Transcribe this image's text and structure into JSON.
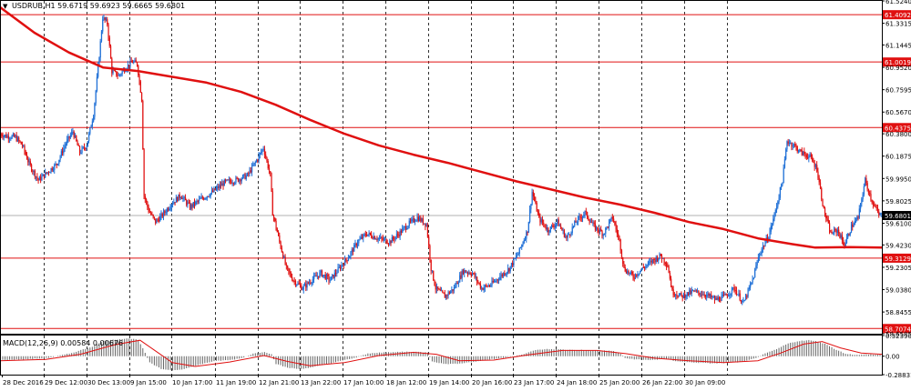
{
  "header": {
    "symbol_label": "USDRUB,H1",
    "ohlc": [
      "59.6719",
      "59.6923",
      "59.6665",
      "59.6801"
    ]
  },
  "indicator": {
    "label": "MACD(12,26,9) 0.00584 0.00676"
  },
  "colors": {
    "bull": "#1e6fd6",
    "bear": "#e01010",
    "ma": "#e01010",
    "level_line": "#e01010",
    "grid": "#000000",
    "current_price": "#b0b0b0",
    "macd_hist": "#666666",
    "macd_signal": "#e01010"
  },
  "chart_data": {
    "type": "candlestick",
    "price_axis": {
      "range": [
        58.6585,
        61.524
      ],
      "ticks": [
        "61.5240",
        "61.3315",
        "61.1445",
        "60.9520",
        "60.7595",
        "60.5670",
        "60.3800",
        "60.1875",
        "59.9950",
        "59.8025",
        "59.6100",
        "59.4230",
        "59.2305",
        "59.0380",
        "58.8455",
        "58.6585"
      ]
    },
    "horizontal_levels": [
      "61.4092",
      "61.0019",
      "60.4375",
      "59.3129",
      "58.7074"
    ],
    "current_price": "59.6801",
    "x_axis_labels": [
      "28 Dec 2016",
      "29 Dec 12:00",
      "30 Dec 13:00",
      "9 Jan 15:00",
      "10 Jan 17:00",
      "11 Jan 19:00",
      "12 Jan 21:00",
      "13 Jan 22:00",
      "17 Jan 10:00",
      "18 Jan 12:00",
      "19 Jan 14:00",
      "20 Jan 16:00",
      "23 Jan 17:00",
      "24 Jan 18:00",
      "25 Jan 20:00",
      "26 Jan 22:00",
      "30 Jan 09:00"
    ],
    "price_path": [
      [
        0,
        60.38
      ],
      [
        6,
        60.36
      ],
      [
        14,
        60.35
      ],
      [
        20,
        60.28
      ],
      [
        26,
        60.12
      ],
      [
        34,
        59.98
      ],
      [
        42,
        60.05
      ],
      [
        50,
        60.12
      ],
      [
        58,
        60.3
      ],
      [
        64,
        60.4
      ],
      [
        70,
        60.22
      ],
      [
        76,
        60.28
      ],
      [
        82,
        60.55
      ],
      [
        86,
        60.95
      ],
      [
        90,
        61.38
      ],
      [
        94,
        61.33
      ],
      [
        98,
        60.92
      ],
      [
        104,
        60.88
      ],
      [
        110,
        60.95
      ],
      [
        116,
        61.0
      ],
      [
        120,
        60.98
      ],
      [
        124,
        60.68
      ],
      [
        126,
        59.85
      ],
      [
        130,
        59.72
      ],
      [
        136,
        59.62
      ],
      [
        142,
        59.68
      ],
      [
        150,
        59.78
      ],
      [
        158,
        59.85
      ],
      [
        166,
        59.75
      ],
      [
        176,
        59.82
      ],
      [
        186,
        59.88
      ],
      [
        196,
        59.96
      ],
      [
        206,
        59.98
      ],
      [
        216,
        60.02
      ],
      [
        224,
        60.15
      ],
      [
        230,
        60.26
      ],
      [
        236,
        60.02
      ],
      [
        238,
        59.7
      ],
      [
        244,
        59.45
      ],
      [
        250,
        59.22
      ],
      [
        256,
        59.12
      ],
      [
        264,
        59.05
      ],
      [
        272,
        59.12
      ],
      [
        280,
        59.18
      ],
      [
        288,
        59.12
      ],
      [
        296,
        59.22
      ],
      [
        304,
        59.32
      ],
      [
        312,
        59.45
      ],
      [
        320,
        59.52
      ],
      [
        330,
        59.48
      ],
      [
        340,
        59.45
      ],
      [
        348,
        59.52
      ],
      [
        356,
        59.6
      ],
      [
        364,
        59.66
      ],
      [
        372,
        59.6
      ],
      [
        376,
        59.22
      ],
      [
        380,
        59.05
      ],
      [
        388,
        58.98
      ],
      [
        396,
        59.05
      ],
      [
        404,
        59.2
      ],
      [
        412,
        59.18
      ],
      [
        420,
        59.05
      ],
      [
        428,
        59.08
      ],
      [
        436,
        59.15
      ],
      [
        444,
        59.22
      ],
      [
        452,
        59.35
      ],
      [
        460,
        59.55
      ],
      [
        464,
        59.88
      ],
      [
        470,
        59.65
      ],
      [
        478,
        59.55
      ],
      [
        486,
        59.62
      ],
      [
        494,
        59.48
      ],
      [
        502,
        59.62
      ],
      [
        510,
        59.7
      ],
      [
        518,
        59.58
      ],
      [
        526,
        59.52
      ],
      [
        534,
        59.66
      ],
      [
        540,
        59.46
      ],
      [
        544,
        59.22
      ],
      [
        552,
        59.15
      ],
      [
        560,
        59.22
      ],
      [
        568,
        59.28
      ],
      [
        576,
        59.33
      ],
      [
        582,
        59.25
      ],
      [
        586,
        59.02
      ],
      [
        594,
        58.98
      ],
      [
        604,
        59.02
      ],
      [
        614,
        59.0
      ],
      [
        624,
        58.95
      ],
      [
        632,
        58.98
      ],
      [
        640,
        59.05
      ],
      [
        648,
        58.92
      ],
      [
        656,
        59.12
      ],
      [
        662,
        59.35
      ],
      [
        670,
        59.5
      ],
      [
        676,
        59.72
      ],
      [
        682,
        59.98
      ],
      [
        686,
        60.32
      ],
      [
        692,
        60.28
      ],
      [
        698,
        60.22
      ],
      [
        706,
        60.18
      ],
      [
        712,
        60.08
      ],
      [
        718,
        59.72
      ],
      [
        724,
        59.52
      ],
      [
        730,
        59.55
      ],
      [
        736,
        59.42
      ],
      [
        742,
        59.58
      ],
      [
        748,
        59.66
      ],
      [
        754,
        59.98
      ],
      [
        760,
        59.8
      ],
      [
        766,
        59.68
      ]
    ],
    "moving_average": [
      [
        0,
        61.47
      ],
      [
        30,
        61.25
      ],
      [
        60,
        61.08
      ],
      [
        90,
        60.95
      ],
      [
        120,
        60.92
      ],
      [
        150,
        60.87
      ],
      [
        180,
        60.82
      ],
      [
        210,
        60.74
      ],
      [
        240,
        60.63
      ],
      [
        270,
        60.5
      ],
      [
        300,
        60.38
      ],
      [
        330,
        60.28
      ],
      [
        360,
        60.2
      ],
      [
        390,
        60.13
      ],
      [
        420,
        60.05
      ],
      [
        450,
        59.97
      ],
      [
        480,
        59.9
      ],
      [
        510,
        59.83
      ],
      [
        540,
        59.77
      ],
      [
        570,
        59.7
      ],
      [
        600,
        59.62
      ],
      [
        630,
        59.56
      ],
      [
        660,
        59.48
      ],
      [
        690,
        59.43
      ],
      [
        710,
        59.4
      ],
      [
        740,
        59.405
      ],
      [
        768,
        59.4
      ]
    ],
    "macd": {
      "range": [
        -0.28831,
        0.3239
      ],
      "ticks": [
        "0.32390",
        "0.00",
        "-0.28831"
      ],
      "histogram": [
        [
          0,
          -0.06
        ],
        [
          20,
          -0.05
        ],
        [
          40,
          -0.03
        ],
        [
          60,
          0.04
        ],
        [
          80,
          0.15
        ],
        [
          90,
          0.24
        ],
        [
          100,
          0.26
        ],
        [
          110,
          0.28
        ],
        [
          120,
          0.26
        ],
        [
          126,
          0.05
        ],
        [
          130,
          -0.1
        ],
        [
          140,
          -0.2
        ],
        [
          150,
          -0.22
        ],
        [
          160,
          -0.2
        ],
        [
          170,
          -0.15
        ],
        [
          180,
          -0.1
        ],
        [
          190,
          -0.07
        ],
        [
          200,
          -0.06
        ],
        [
          210,
          -0.03
        ],
        [
          220,
          0.04
        ],
        [
          230,
          0.07
        ],
        [
          236,
          0.03
        ],
        [
          240,
          -0.12
        ],
        [
          250,
          -0.18
        ],
        [
          260,
          -0.2
        ],
        [
          270,
          -0.18
        ],
        [
          280,
          -0.14
        ],
        [
          290,
          -0.1
        ],
        [
          300,
          -0.06
        ],
        [
          310,
          -0.02
        ],
        [
          320,
          0.04
        ],
        [
          330,
          0.06
        ],
        [
          340,
          0.06
        ],
        [
          350,
          0.07
        ],
        [
          360,
          0.07
        ],
        [
          372,
          0.06
        ],
        [
          376,
          -0.08
        ],
        [
          386,
          -0.12
        ],
        [
          396,
          -0.12
        ],
        [
          406,
          -0.1
        ],
        [
          416,
          -0.08
        ],
        [
          426,
          -0.05
        ],
        [
          436,
          -0.03
        ],
        [
          446,
          0.0
        ],
        [
          456,
          0.03
        ],
        [
          464,
          0.09
        ],
        [
          474,
          0.11
        ],
        [
          484,
          0.11
        ],
        [
          494,
          0.1
        ],
        [
          504,
          0.1
        ],
        [
          514,
          0.09
        ],
        [
          524,
          0.09
        ],
        [
          534,
          0.08
        ],
        [
          540,
          0.04
        ],
        [
          544,
          -0.03
        ],
        [
          554,
          -0.05
        ],
        [
          564,
          -0.06
        ],
        [
          574,
          -0.05
        ],
        [
          582,
          -0.04
        ],
        [
          586,
          -0.07
        ],
        [
          596,
          -0.09
        ],
        [
          606,
          -0.1
        ],
        [
          616,
          -0.11
        ],
        [
          626,
          -0.11
        ],
        [
          636,
          -0.1
        ],
        [
          646,
          -0.09
        ],
        [
          656,
          -0.04
        ],
        [
          666,
          0.04
        ],
        [
          676,
          0.11
        ],
        [
          686,
          0.2
        ],
        [
          696,
          0.24
        ],
        [
          704,
          0.25
        ],
        [
          712,
          0.23
        ],
        [
          720,
          0.18
        ],
        [
          728,
          0.1
        ],
        [
          736,
          0.04
        ],
        [
          746,
          0.02
        ],
        [
          756,
          0.03
        ],
        [
          766,
          0.02
        ]
      ],
      "signal": [
        [
          0,
          -0.07
        ],
        [
          40,
          -0.05
        ],
        [
          70,
          0.03
        ],
        [
          100,
          0.18
        ],
        [
          122,
          0.25
        ],
        [
          134,
          0.1
        ],
        [
          150,
          -0.1
        ],
        [
          170,
          -0.16
        ],
        [
          200,
          -0.09
        ],
        [
          230,
          0.01
        ],
        [
          250,
          -0.08
        ],
        [
          270,
          -0.15
        ],
        [
          300,
          -0.1
        ],
        [
          330,
          0.01
        ],
        [
          360,
          0.06
        ],
        [
          380,
          0.03
        ],
        [
          400,
          -0.07
        ],
        [
          430,
          -0.06
        ],
        [
          460,
          0.02
        ],
        [
          490,
          0.09
        ],
        [
          520,
          0.09
        ],
        [
          545,
          0.04
        ],
        [
          570,
          -0.03
        ],
        [
          600,
          -0.07
        ],
        [
          630,
          -0.1
        ],
        [
          660,
          -0.07
        ],
        [
          680,
          0.05
        ],
        [
          700,
          0.19
        ],
        [
          716,
          0.23
        ],
        [
          732,
          0.13
        ],
        [
          750,
          0.05
        ],
        [
          768,
          0.03
        ]
      ]
    }
  }
}
